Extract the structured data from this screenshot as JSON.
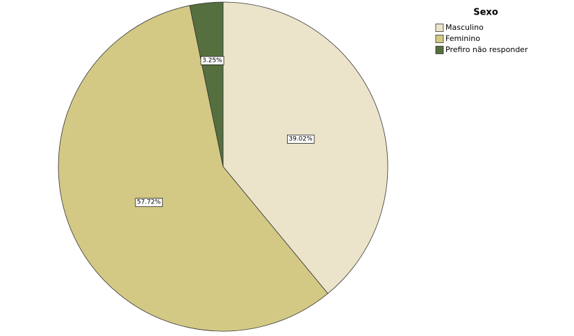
{
  "chart_data": {
    "type": "pie",
    "legend_title": "Sexo",
    "categories": [
      "Masculino",
      "Feminino",
      "Prefiro não responder"
    ],
    "values": [
      39.02,
      57.72,
      3.25
    ],
    "value_labels": [
      "39.02%",
      "57.72%",
      "3.25%"
    ],
    "colors": [
      "#ebe4cb",
      "#d3c985",
      "#566f3e"
    ],
    "legend": "top-right"
  }
}
